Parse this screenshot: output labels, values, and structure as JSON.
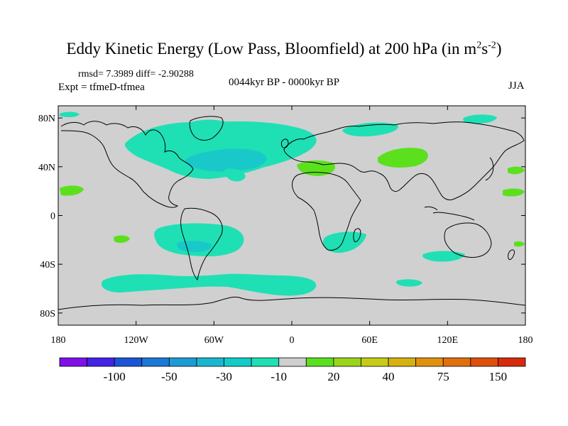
{
  "title": {
    "main": "Eddy Kinetic Energy (Low Pass, Bloomfield) at 200 hPa (in m",
    "sup1": "2",
    "mid": "s",
    "sup2": "-2",
    "end": ")"
  },
  "stats": "rmsd= 7.3989 diff= -2.90288",
  "expt": "Expt = tfmeD-tfmea",
  "period": "0044kyr BP - 0000kyr BP",
  "season": "JJA",
  "axes": {
    "lat_labels": [
      "80N",
      "40N",
      "0",
      "40S",
      "80S"
    ],
    "lat_values": [
      80,
      40,
      0,
      -40,
      -80
    ],
    "lon_labels": [
      "180",
      "120W",
      "60W",
      "0",
      "60E",
      "120E",
      "180"
    ],
    "lon_values": [
      -180,
      -120,
      -60,
      0,
      60,
      120,
      180
    ]
  },
  "colorbar": {
    "colors": [
      "#7f10e8",
      "#4621e6",
      "#1c54d8",
      "#1a78d6",
      "#1c9bd6",
      "#19b7cf",
      "#14cbc8",
      "#1fe0b4",
      "#cfcfcf",
      "#5ce01e",
      "#99d41a",
      "#c6cc15",
      "#d6b111",
      "#e0920e",
      "#e0700c",
      "#de4f0c",
      "#d62a0b"
    ],
    "labels": [
      "-100",
      "-50",
      "-30",
      "-10",
      "20",
      "40",
      "75",
      "150"
    ],
    "label_boundaries": [
      2,
      4,
      6,
      8,
      10,
      12,
      14,
      16
    ]
  },
  "map_colors": {
    "ocean": "#d0d0d0",
    "cyan_light": "#1fe0b4",
    "cyan_mid": "#19c9c9",
    "green": "#5ce01e",
    "coast": "#000000"
  }
}
